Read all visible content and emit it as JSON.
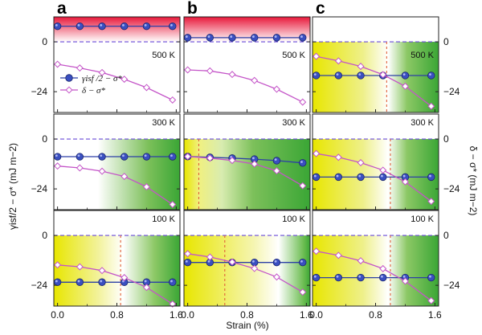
{
  "chart_data": {
    "type": "line",
    "xlabel": "Strain (%)",
    "ylabel_left": "γisf/2 − σ* (mJ m−2)",
    "ylabel_right": "δ − σ* (mJ m−2)",
    "x_ticks": [
      "0.0",
      "0.8",
      "1.6"
    ],
    "y_ticks": [
      "0",
      "−24"
    ],
    "xlim": [
      -0.05,
      1.65
    ],
    "ylim": [
      -34,
      12
    ],
    "legend": {
      "items": [
        {
          "label": "γisf /2 − σ*",
          "color": "#2c3fa6",
          "marker": "filled-circle"
        },
        {
          "label": "δ − σ*",
          "color": "#c455c8",
          "marker": "open-diamond"
        }
      ],
      "placement": "panel a, top row, left"
    },
    "colors": {
      "gamma": "#2c3fa6",
      "delta": "#c455c8",
      "zero_line": "#6a4bd8",
      "cross_line": "#e0603a",
      "positive_zone": "#e8183a",
      "yellow_zone": "#e8e600",
      "green_zone": "#3aa635"
    },
    "columns": [
      {
        "letter": "a"
      },
      {
        "letter": "b"
      },
      {
        "letter": "c"
      }
    ],
    "temperatures": [
      "500 K",
      "300 K",
      "100 K"
    ],
    "panels": [
      {
        "col": 0,
        "row": 0,
        "temp": "500 K",
        "bg": "red",
        "series": [
          {
            "name": "γisf /2 − σ*",
            "x": [
              0,
              0.3,
              0.6,
              0.9,
              1.2,
              1.55
            ],
            "y": [
              7.5,
              7.5,
              7.5,
              7.5,
              7.5,
              7.5
            ]
          },
          {
            "name": "δ − σ*",
            "x": [
              0,
              0.3,
              0.6,
              0.9,
              1.2,
              1.55
            ],
            "y": [
              -10.8,
              -12.6,
              -14.8,
              -18.0,
              -22.0,
              -28.0
            ]
          }
        ]
      },
      {
        "col": 1,
        "row": 0,
        "temp": "500 K",
        "bg": "red",
        "series": [
          {
            "name": "γisf /2 − σ*",
            "x": [
              0,
              0.3,
              0.6,
              0.9,
              1.2,
              1.55
            ],
            "y": [
              2.0,
              2.0,
              2.0,
              2.0,
              2.0,
              2.0
            ]
          },
          {
            "name": "δ − σ*",
            "x": [
              0,
              0.3,
              0.6,
              0.9,
              1.2,
              1.55
            ],
            "y": [
              -13.5,
              -14.0,
              -15.7,
              -18.6,
              -22.8,
              -29.0
            ]
          }
        ]
      },
      {
        "col": 2,
        "row": 0,
        "temp": "500 K",
        "bg": "yellow-green",
        "cross_x": 0.95,
        "series": [
          {
            "name": "γisf /2 − σ*",
            "x": [
              0,
              0.3,
              0.6,
              0.9,
              1.2,
              1.55
            ],
            "y": [
              -16.2,
              -16.2,
              -16.2,
              -16.2,
              -16.2,
              -16.2
            ]
          },
          {
            "name": "δ − σ*",
            "x": [
              0,
              0.3,
              0.6,
              0.9,
              1.2,
              1.55
            ],
            "y": [
              -7.0,
              -9.2,
              -11.8,
              -15.8,
              -21.4,
              -31.0
            ]
          }
        ]
      },
      {
        "col": 0,
        "row": 1,
        "temp": "300 K",
        "bg": "white-green",
        "series": [
          {
            "name": "γisf /2 − σ*",
            "x": [
              0,
              0.3,
              0.6,
              0.9,
              1.2,
              1.55
            ],
            "y": [
              -8.5,
              -8.5,
              -8.5,
              -8.5,
              -8.5,
              -8.5
            ]
          },
          {
            "name": "δ − σ*",
            "x": [
              0,
              0.3,
              0.6,
              0.9,
              1.2,
              1.55
            ],
            "y": [
              -13.0,
              -13.9,
              -15.5,
              -18.0,
              -23.0,
              -31.5
            ]
          }
        ]
      },
      {
        "col": 1,
        "row": 1,
        "temp": "300 K",
        "bg": "yellow-green",
        "cross_x": 0.15,
        "series": [
          {
            "name": "γisf /2 − σ*",
            "x": [
              0,
              0.3,
              0.6,
              0.9,
              1.2,
              1.55
            ],
            "y": [
              -8.4,
              -8.8,
              -9.2,
              -9.7,
              -10.4,
              -11.5
            ]
          },
          {
            "name": "δ − σ*",
            "x": [
              0,
              0.3,
              0.6,
              0.9,
              1.2,
              1.55
            ],
            "y": [
              -8.4,
              -9.2,
              -10.3,
              -12.0,
              -15.3,
              -22.5
            ]
          }
        ]
      },
      {
        "col": 2,
        "row": 1,
        "temp": "300 K",
        "bg": "yellow-green",
        "cross_x": 1.0,
        "series": [
          {
            "name": "γisf /2 − σ*",
            "x": [
              0,
              0.3,
              0.6,
              0.9,
              1.2,
              1.55
            ],
            "y": [
              -18.3,
              -18.3,
              -18.3,
              -18.3,
              -18.3,
              -18.3
            ]
          },
          {
            "name": "δ − σ*",
            "x": [
              0,
              0.3,
              0.6,
              0.9,
              1.2,
              1.55
            ],
            "y": [
              -7.0,
              -8.8,
              -11.4,
              -15.0,
              -20.6,
              -30.0
            ]
          }
        ]
      },
      {
        "col": 0,
        "row": 2,
        "temp": "100 K",
        "bg": "yellow-green",
        "cross_x": 0.85,
        "series": [
          {
            "name": "γisf /2 − σ*",
            "x": [
              0,
              0.3,
              0.6,
              0.9,
              1.2,
              1.55
            ],
            "y": [
              -22.5,
              -22.5,
              -22.5,
              -22.5,
              -22.5,
              -22.5
            ]
          },
          {
            "name": "δ − σ*",
            "x": [
              0,
              0.3,
              0.6,
              0.9,
              1.2,
              1.55
            ],
            "y": [
              -14.2,
              -15.1,
              -16.9,
              -20.3,
              -25.0,
              -33.0
            ]
          }
        ]
      },
      {
        "col": 1,
        "row": 2,
        "temp": "100 K",
        "bg": "yellow-green",
        "cross_x": 0.5,
        "series": [
          {
            "name": "γisf /2 − σ*",
            "x": [
              0,
              0.3,
              0.6,
              0.9,
              1.2,
              1.55
            ],
            "y": [
              -13.0,
              -13.0,
              -13.0,
              -13.0,
              -13.0,
              -13.0
            ]
          },
          {
            "name": "δ − σ*",
            "x": [
              0,
              0.3,
              0.6,
              0.9,
              1.2,
              1.55
            ],
            "y": [
              -8.8,
              -10.4,
              -12.8,
              -15.9,
              -20.0,
              -27.3
            ]
          }
        ]
      },
      {
        "col": 2,
        "row": 2,
        "temp": "100 K",
        "bg": "yellow-green",
        "cross_x": 1.0,
        "series": [
          {
            "name": "γisf /2 − σ*",
            "x": [
              0,
              0.3,
              0.6,
              0.9,
              1.2,
              1.55
            ],
            "y": [
              -20.3,
              -20.3,
              -20.3,
              -20.3,
              -20.3,
              -20.3
            ]
          },
          {
            "name": "δ − σ*",
            "x": [
              0,
              0.3,
              0.6,
              0.9,
              1.2,
              1.55
            ],
            "y": [
              -7.6,
              -9.6,
              -12.2,
              -16.0,
              -22.0,
              -31.4
            ]
          }
        ]
      }
    ]
  }
}
